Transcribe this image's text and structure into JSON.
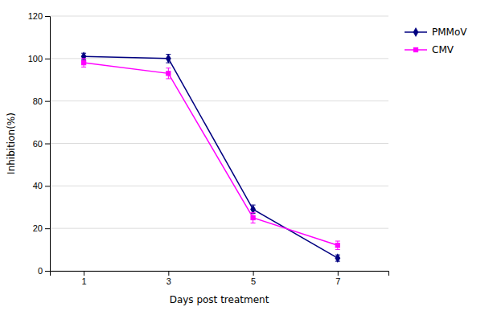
{
  "chart_data": {
    "type": "line",
    "x": [
      1,
      3,
      5,
      7
    ],
    "x_label": "Days post treatment",
    "y_label": "Inhibition(%)",
    "xlim": [
      0.2,
      8.2
    ],
    "xticks": [
      1,
      3,
      5,
      7
    ],
    "ylim": [
      0,
      120
    ],
    "yticks": [
      0,
      20,
      40,
      60,
      80,
      100,
      120
    ],
    "grid": true,
    "legend": "right",
    "series": [
      {
        "name": "PMMoV",
        "color": "#000080",
        "marker": "diamond",
        "values": [
          101,
          100,
          29,
          6
        ],
        "errors": [
          1.5,
          2.0,
          2.0,
          1.5
        ]
      },
      {
        "name": "CMV",
        "color": "#FF00FF",
        "marker": "square",
        "values": [
          98,
          93,
          25,
          12
        ],
        "errors": [
          2.0,
          2.5,
          2.5,
          2.0
        ]
      }
    ]
  }
}
